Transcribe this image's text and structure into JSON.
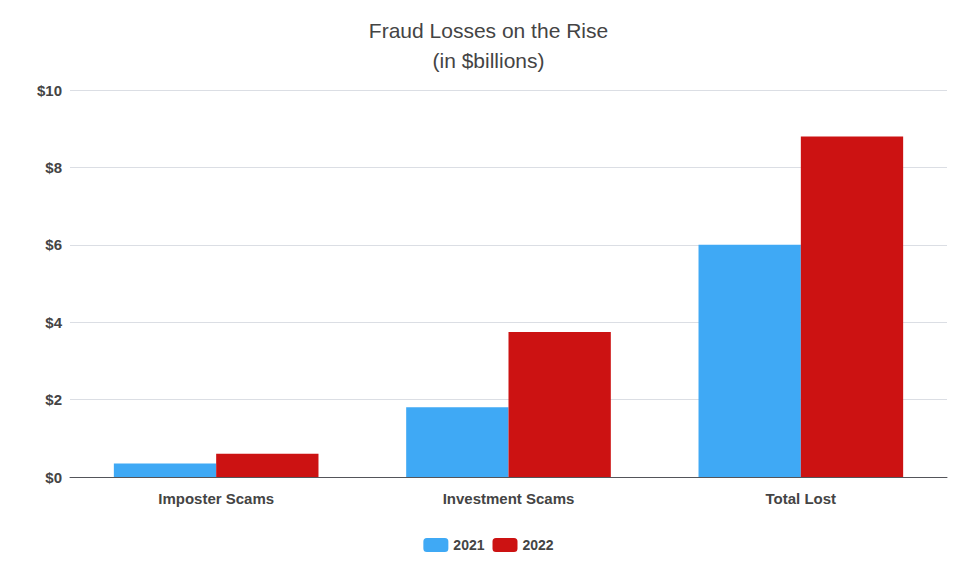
{
  "chart_data": {
    "type": "bar",
    "title": "Fraud Losses on the Rise\n(in $billions)",
    "categories": [
      "Imposter Scams",
      "Investment Scams",
      "Total Lost"
    ],
    "series": [
      {
        "name": "2021",
        "color": "#3fa9f5",
        "values": [
          0.35,
          1.8,
          6.0
        ]
      },
      {
        "name": "2022",
        "color": "#cc1212",
        "values": [
          0.6,
          3.75,
          8.8
        ]
      }
    ],
    "ylim": [
      0,
      10
    ],
    "yticks": [
      {
        "value": 0,
        "label": "$0"
      },
      {
        "value": 2,
        "label": "$2"
      },
      {
        "value": 4,
        "label": "$4"
      },
      {
        "value": 6,
        "label": "$6"
      },
      {
        "value": 8,
        "label": "$8"
      },
      {
        "value": 10,
        "label": "$10"
      }
    ],
    "grid": true,
    "legend": "bottom"
  }
}
